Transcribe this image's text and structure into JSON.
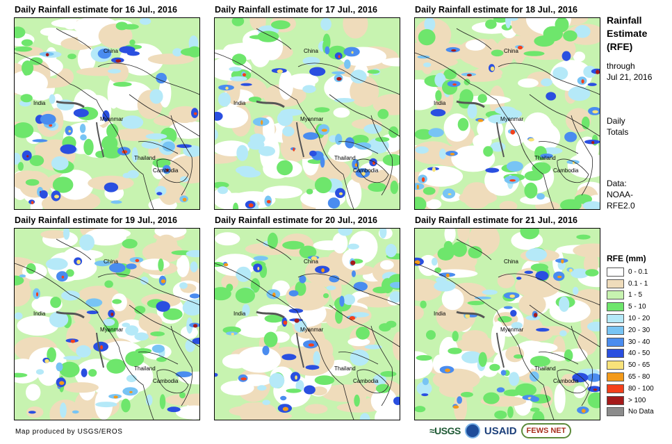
{
  "panels": [
    {
      "title": "Daily Rainfall estimate for 16 Jul., 2016"
    },
    {
      "title": "Daily Rainfall estimate for 17 Jul., 2016"
    },
    {
      "title": "Daily Rainfall estimate for 18 Jul., 2016"
    },
    {
      "title": "Daily Rainfall estimate for 19 Jul., 2016"
    },
    {
      "title": "Daily Rainfall estimate for 20 Jul., 2016"
    },
    {
      "title": "Daily Rainfall estimate for 21 Jul., 2016"
    }
  ],
  "place_labels": {
    "china": "China",
    "india": "India",
    "myanmar": "Myanmar",
    "thailand": "Thailand",
    "cambodia": "Cambodia"
  },
  "sidebar": {
    "title_line1": "Rainfall",
    "title_line2": "Estimate",
    "title_line3": "(RFE)",
    "through": "through",
    "date": "Jul 21, 2016",
    "daily": "Daily",
    "totals": "Totals",
    "data_label": "Data:",
    "source1": "NOAA-",
    "source2": "RFE2.0"
  },
  "legend": {
    "title": "RFE (mm)",
    "items": [
      {
        "label": "0 - 0.1",
        "color": "#ffffff"
      },
      {
        "label": "0.1 - 1",
        "color": "#efdcbb"
      },
      {
        "label": "1 - 5",
        "color": "#c7f3b0"
      },
      {
        "label": "5 - 10",
        "color": "#6ee66c"
      },
      {
        "label": "10 - 20",
        "color": "#b5e9f8"
      },
      {
        "label": "20 - 30",
        "color": "#78c4f4"
      },
      {
        "label": "30 - 40",
        "color": "#4a8cef"
      },
      {
        "label": "40 - 50",
        "color": "#2a4fe0"
      },
      {
        "label": "50 - 65",
        "color": "#f8e27a"
      },
      {
        "label": "65 - 80",
        "color": "#f39a1a"
      },
      {
        "label": "80 - 100",
        "color": "#f4401a"
      },
      {
        "label": "> 100",
        "color": "#a51a1a"
      },
      {
        "label": "No Data",
        "color": "#8c8c8c"
      }
    ]
  },
  "credit": "Map produced by USGS/EROS",
  "logos": {
    "usgs": "≈USGS",
    "usaid": "USAID",
    "fews": "FEWS NET"
  }
}
